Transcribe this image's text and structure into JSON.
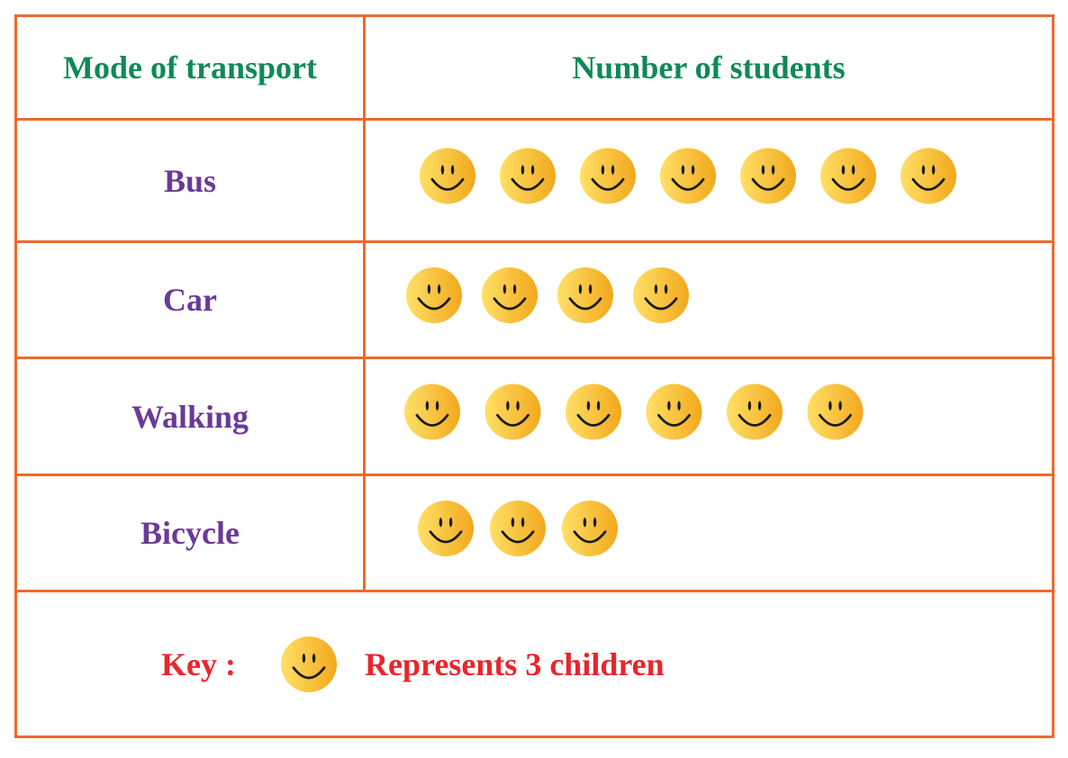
{
  "table": {
    "header_mode": "Mode of transport",
    "header_count": "Number of students"
  },
  "key": {
    "label": "Key :",
    "text": "Represents 3 children",
    "icon": "smiley-face-icon",
    "value_per_icon": 3
  },
  "colors": {
    "border": "#ee6a2b",
    "header_text": "#0f8a55",
    "category_text": "#6b3a96",
    "key_text": "#e8262b",
    "face_light": "#ffe066",
    "face_dark": "#f2a81d"
  },
  "chart_data": {
    "type": "table",
    "title": "",
    "xlabel": "Mode of transport",
    "ylabel": "Number of students",
    "categories": [
      "Bus",
      "Car",
      "Walking",
      "Bicycle"
    ],
    "icon_counts": [
      7,
      4,
      6,
      3
    ],
    "values": [
      21,
      12,
      18,
      9
    ]
  }
}
